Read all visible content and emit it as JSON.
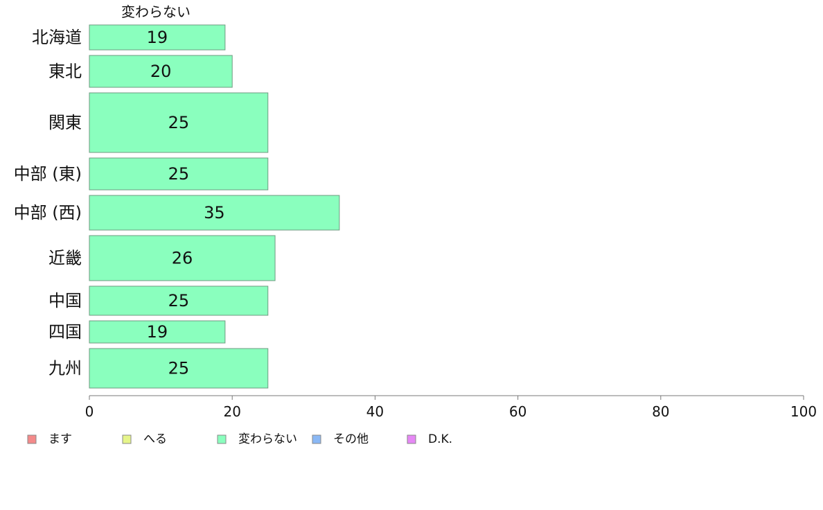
{
  "chart_data": {
    "type": "bar",
    "orientation": "horizontal",
    "stacked": true,
    "title": "",
    "xlabel": "",
    "ylabel": "",
    "xlim": [
      0,
      100
    ],
    "x_ticks": [
      0,
      20,
      40,
      60,
      80,
      100
    ],
    "grid": false,
    "categories": [
      "北海道",
      "東北",
      "関東",
      "中部 (東)",
      "中部 (西)",
      "近畿",
      "中国",
      "四国",
      "九州"
    ],
    "bar_weights": [
      36,
      46,
      86,
      46,
      50,
      65,
      42,
      32,
      57
    ],
    "series": [
      {
        "name": "ます",
        "color": "#f48a8a",
        "values": [
          0,
          0,
          0,
          0,
          0,
          0,
          0,
          0,
          0
        ]
      },
      {
        "name": "へる",
        "color": "#e6f58a",
        "values": [
          0,
          0,
          0,
          0,
          0,
          0,
          0,
          0,
          0
        ]
      },
      {
        "name": "変わらない",
        "color": "#8affbe",
        "values": [
          19,
          20,
          25,
          25,
          35,
          26,
          25,
          19,
          25
        ]
      },
      {
        "name": "その他",
        "color": "#8ab8f5",
        "values": [
          0,
          0,
          0,
          0,
          0,
          0,
          0,
          0,
          0
        ]
      },
      {
        "name": "D.K.",
        "color": "#e688f5",
        "values": [
          0,
          0,
          0,
          0,
          0,
          0,
          0,
          0,
          0
        ]
      }
    ],
    "series_header": "変わらない",
    "legend_position": "bottom"
  }
}
